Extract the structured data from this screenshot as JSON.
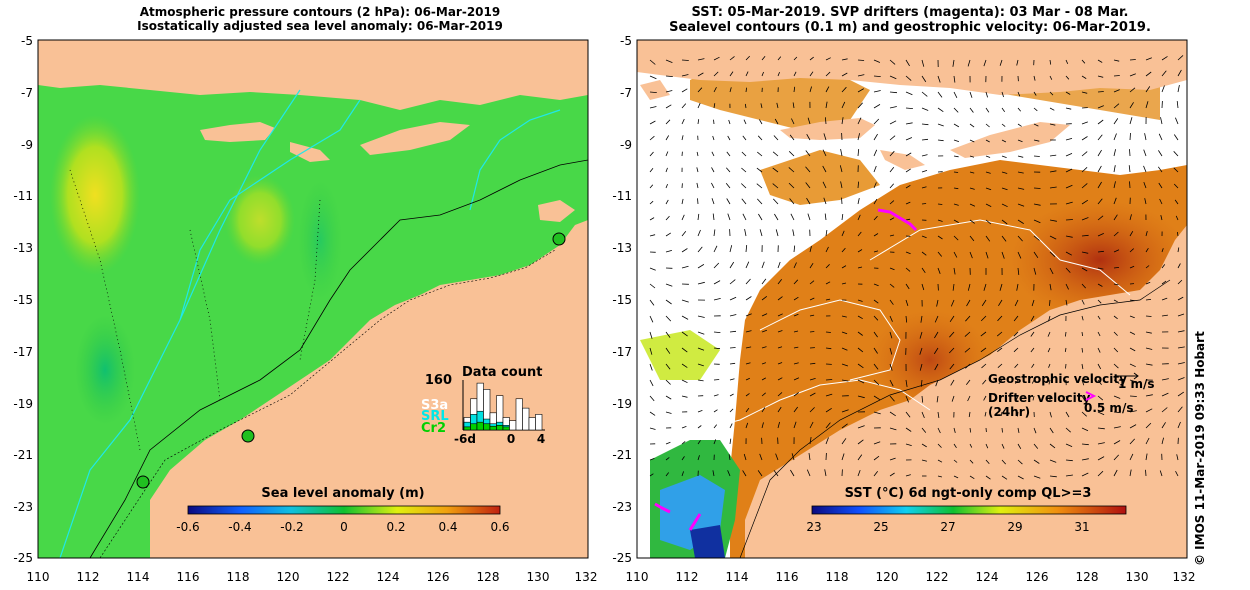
{
  "left_panel": {
    "title_line1": "Atmospheric pressure contours (2 hPa): 06-Mar-2019",
    "title_line2": "Isostatically adjusted sea level anomaly: 06-Mar-2019",
    "x_ticks": [
      "110",
      "112",
      "114",
      "116",
      "118",
      "120",
      "122",
      "124",
      "126",
      "128",
      "130",
      "132"
    ],
    "y_ticks": [
      "-5",
      "-7",
      "-9",
      "-11",
      "-13",
      "-15",
      "-17",
      "-19",
      "-21",
      "-23",
      "-25"
    ],
    "colorbar": {
      "title": "Sea level anomaly (m)",
      "ticks": [
        "-0.6",
        "-0.4",
        "-0.2",
        "0",
        "0.2",
        "0.4",
        "0.6"
      ]
    },
    "data_count": {
      "title": "Data count",
      "ymax_label": "160",
      "x_ticks": [
        "-6d",
        "0",
        "4"
      ],
      "legend": [
        {
          "label": "S3a",
          "color": "#ffffff"
        },
        {
          "label": "SRL",
          "color": "#00e0e0"
        },
        {
          "label": "Cr2",
          "color": "#00d000"
        }
      ],
      "bars": [
        {
          "total": 40,
          "srl": 25,
          "cr2": 10
        },
        {
          "total": 100,
          "srl": 50,
          "cr2": 20
        },
        {
          "total": 150,
          "srl": 60,
          "cr2": 25
        },
        {
          "total": 130,
          "srl": 35,
          "cr2": 20
        },
        {
          "total": 55,
          "srl": 20,
          "cr2": 12
        },
        {
          "total": 110,
          "srl": 25,
          "cr2": 15
        },
        {
          "total": 40,
          "srl": 15,
          "cr2": 10
        },
        {
          "total": 30,
          "srl": 0,
          "cr2": 0
        },
        {
          "total": 100,
          "srl": 0,
          "cr2": 0
        },
        {
          "total": 70,
          "srl": 0,
          "cr2": 0
        },
        {
          "total": 40,
          "srl": 0,
          "cr2": 0
        },
        {
          "total": 50,
          "srl": 0,
          "cr2": 0
        }
      ]
    }
  },
  "right_panel": {
    "title_line1": "SST: 05-Mar-2019. SVP drifters (magenta): 03 Mar - 08 Mar.",
    "title_line2": "Sealevel contours (0.1 m) and geostrophic velocity: 06-Mar-2019.",
    "x_ticks": [
      "110",
      "112",
      "114",
      "116",
      "118",
      "120",
      "122",
      "124",
      "126",
      "128",
      "130",
      "132"
    ],
    "y_ticks": [
      "-5",
      "-7",
      "-9",
      "-11",
      "-13",
      "-15",
      "-17",
      "-19",
      "-21",
      "-23",
      "-25"
    ],
    "colorbar": {
      "title": "SST (°C) 6d ngt-only comp QL>=3",
      "ticks": [
        "23",
        "25",
        "27",
        "29",
        "31"
      ]
    },
    "legend": {
      "geo_label": "Geostrophic velocity",
      "geo_scale": "1 m/s",
      "drifter_label_1": "Drifter velocity",
      "drifter_label_2": "(24hr)",
      "drifter_scale": "0.5 m/s"
    }
  },
  "credit": "© IMOS 11-Mar-2019 09:33 Hobart",
  "colors": {
    "land": "#f9c196",
    "ocean_green": "#4ad84a",
    "ocean_orange": "#e08018",
    "drifter": "#ff00ff"
  }
}
